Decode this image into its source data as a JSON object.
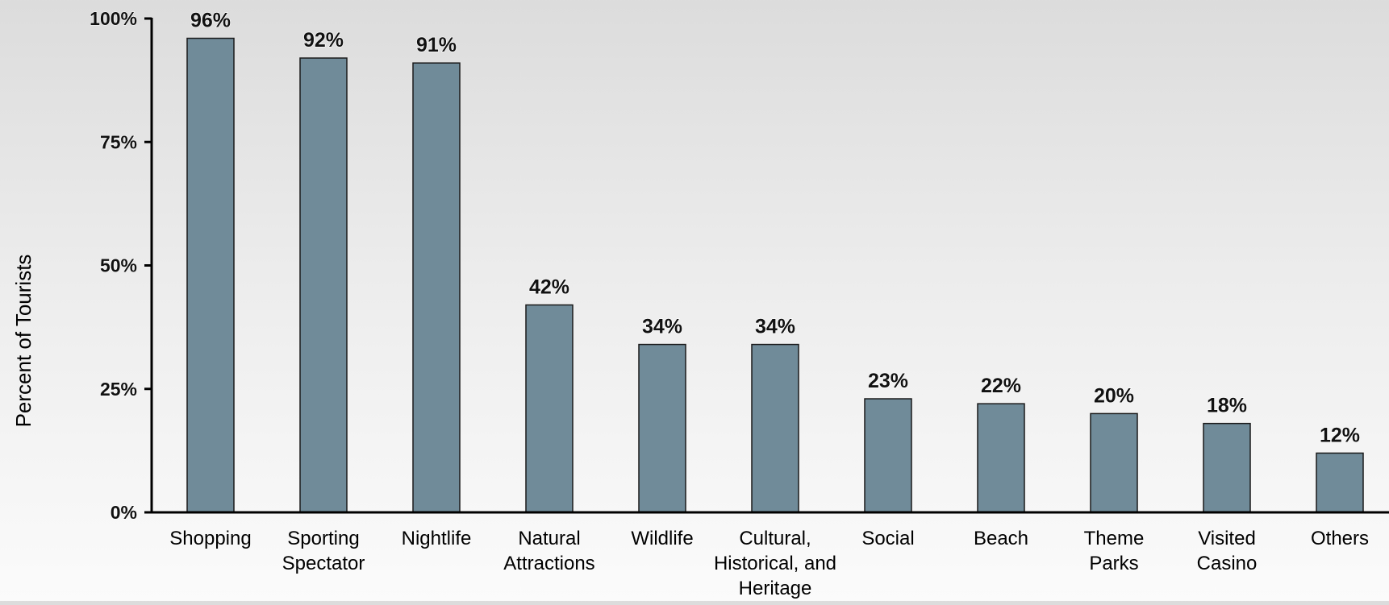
{
  "chart_data": {
    "type": "bar",
    "title": "",
    "xlabel": "",
    "ylabel": "Percent of Tourists",
    "ylim": [
      0,
      100
    ],
    "yticks": [
      0,
      25,
      50,
      75,
      100
    ],
    "ytick_labels": [
      "0%",
      "25%",
      "50%",
      "75%",
      "100%"
    ],
    "grid": false,
    "legend": "none",
    "categories": [
      "Shopping",
      "Sporting Spectator",
      "Nightlife",
      "Natural Attractions",
      "Wildlife",
      "Cultural, Historical, and Heritage",
      "Social",
      "Beach",
      "Theme Parks",
      "Visited Casino",
      "Others"
    ],
    "category_lines": [
      [
        "Shopping"
      ],
      [
        "Sporting",
        "Spectator"
      ],
      [
        "Nightlife"
      ],
      [
        "Natural",
        "Attractions"
      ],
      [
        "Wildlife"
      ],
      [
        "Cultural,",
        "Historical, and",
        "Heritage"
      ],
      [
        "Social"
      ],
      [
        "Beach"
      ],
      [
        "Theme",
        "Parks"
      ],
      [
        "Visited",
        "Casino"
      ],
      [
        "Others"
      ]
    ],
    "values": [
      96,
      92,
      91,
      42,
      34,
      34,
      23,
      22,
      20,
      18,
      12
    ],
    "data_labels": [
      "96%",
      "92%",
      "91%",
      "42%",
      "34%",
      "34%",
      "23%",
      "22%",
      "20%",
      "18%",
      "12%"
    ],
    "bar_color": "#708b99",
    "bar_edge_color": "#1a1a1a",
    "axis_color": "#000000"
  }
}
